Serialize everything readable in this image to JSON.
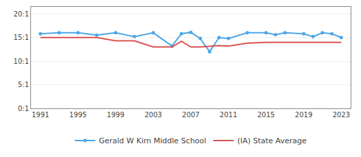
{
  "chart_data": {
    "type": "line",
    "x": [
      1991,
      1993,
      1995,
      1997,
      1999,
      2001,
      2003,
      2005,
      2006,
      2007,
      2008,
      2009,
      2010,
      2011,
      2013,
      2015,
      2016,
      2017,
      2019,
      2020,
      2021,
      2022,
      2023
    ],
    "series": [
      {
        "name": "Gerald W Kirn Middle School",
        "color": "#4da6e8",
        "marker": "circle",
        "values": [
          15.8,
          16.0,
          16.0,
          15.5,
          16.0,
          15.2,
          16.0,
          13.2,
          15.8,
          16.1,
          14.8,
          12.0,
          15.0,
          14.8,
          16.0,
          16.0,
          15.6,
          16.0,
          15.8,
          15.2,
          16.0,
          15.8,
          15.0
        ]
      },
      {
        "name": "(IA) State Average",
        "color": "#d9534f",
        "values": [
          15.0,
          15.0,
          15.0,
          15.0,
          14.3,
          14.3,
          13.0,
          13.0,
          14.2,
          13.0,
          13.0,
          13.2,
          13.3,
          13.2,
          13.8,
          14.0,
          14.0,
          14.0,
          14.0,
          14.0,
          14.0,
          14.0,
          14.0
        ]
      }
    ],
    "xlim": [
      1990.0,
      2024.0
    ],
    "xticks": [
      1991,
      1995,
      1999,
      2003,
      2007,
      2011,
      2015,
      2019,
      2023
    ],
    "ylim": [
      0,
      21.5
    ],
    "yticks": [
      {
        "value": 0,
        "label": "0:1"
      },
      {
        "value": 5,
        "label": "5:1"
      },
      {
        "value": 10,
        "label": "10:1"
      },
      {
        "value": 15,
        "label": "15:1"
      },
      {
        "value": 20,
        "label": "20:1"
      }
    ],
    "grid": "y",
    "legend": "bottom"
  }
}
